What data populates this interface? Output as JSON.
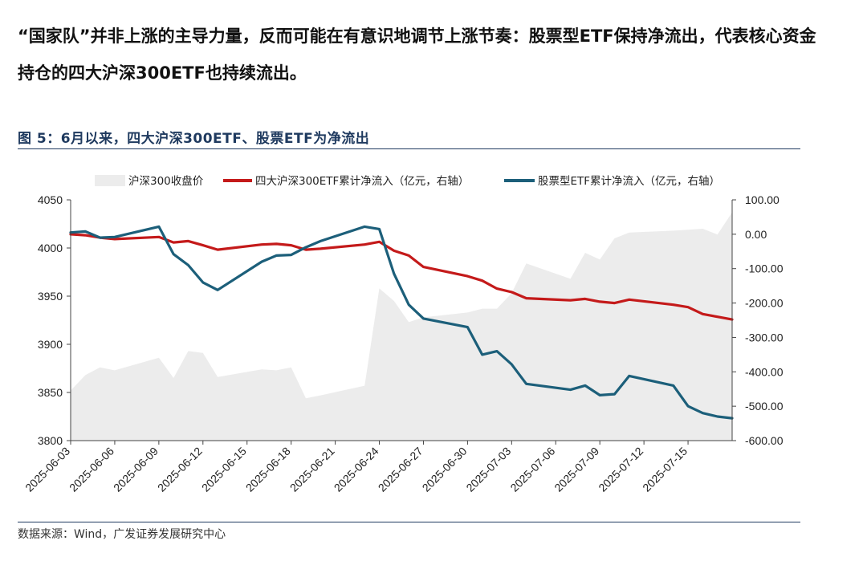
{
  "intro": "“国家队”并非上涨的主导力量，反而可能在有意识地调节上涨节奏：股票型ETF保持净流出，代表核心资金持仓的四大沪深300ETF也持续流出。",
  "figure_title": "图 5：6月以来，四大沪深300ETF、股票ETF为净流出",
  "source": "数据来源：Wind，广发证券发展研究中心",
  "colors": {
    "area": "#ececec",
    "red": "#c41a1a",
    "blue": "#1c5f7a",
    "rule": "#1f3a5f"
  },
  "chart_data": {
    "type": "line",
    "title": "图 5：6月以来，四大沪深300ETF、股票ETF为净流出",
    "legend_position": "top",
    "grid": false,
    "x_ticks": [
      "2025-06-03",
      "2025-06-06",
      "2025-06-09",
      "2025-06-12",
      "2025-06-15",
      "2025-06-18",
      "2025-06-21",
      "2025-06-24",
      "2025-06-27",
      "2025-06-30",
      "2025-07-03",
      "2025-07-06",
      "2025-07-09",
      "2025-07-12",
      "2025-07-15"
    ],
    "x_range": [
      "2025-06-03",
      "2025-07-18"
    ],
    "y_left": {
      "ylim": [
        3800,
        4050
      ],
      "ticks": [
        "3800",
        "3850",
        "3900",
        "3950",
        "4000",
        "4050"
      ]
    },
    "y_right": {
      "ylim": [
        -600,
        100
      ],
      "ticks": [
        "-600.00",
        "-500.00",
        "-400.00",
        "-300.00",
        "-200.00",
        "-100.00",
        "0.00",
        "100.00"
      ]
    },
    "series": [
      {
        "name": "沪深300收盘价",
        "type": "area",
        "axis": "left",
        "x": [
          "2025-06-03",
          "2025-06-04",
          "2025-06-05",
          "2025-06-06",
          "2025-06-09",
          "2025-06-10",
          "2025-06-11",
          "2025-06-12",
          "2025-06-13",
          "2025-06-16",
          "2025-06-17",
          "2025-06-18",
          "2025-06-19",
          "2025-06-20",
          "2025-06-23",
          "2025-06-24",
          "2025-06-25",
          "2025-06-26",
          "2025-06-27",
          "2025-06-30",
          "2025-07-01",
          "2025-07-02",
          "2025-07-03",
          "2025-07-04",
          "2025-07-07",
          "2025-07-08",
          "2025-07-09",
          "2025-07-10",
          "2025-07-11",
          "2025-07-14",
          "2025-07-15",
          "2025-07-16",
          "2025-07-17",
          "2025-07-18"
        ],
        "values": [
          3852,
          3868,
          3876,
          3873,
          3886,
          3865,
          3893,
          3891,
          3866,
          3874,
          3873,
          3876,
          3844,
          3847,
          3857,
          3958,
          3945,
          3923,
          3928,
          3933,
          3937,
          3937,
          3953,
          3984,
          3968,
          3995,
          3988,
          4010,
          4016,
          4018,
          4019,
          4020,
          4014,
          4037
        ]
      },
      {
        "name": "四大沪深300ETF累计净流入（亿元，右轴）",
        "type": "line",
        "axis": "right",
        "x": [
          "2025-06-03",
          "2025-06-04",
          "2025-06-05",
          "2025-06-06",
          "2025-06-09",
          "2025-06-10",
          "2025-06-11",
          "2025-06-12",
          "2025-06-13",
          "2025-06-16",
          "2025-06-17",
          "2025-06-18",
          "2025-06-19",
          "2025-06-20",
          "2025-06-23",
          "2025-06-24",
          "2025-06-25",
          "2025-06-26",
          "2025-06-27",
          "2025-06-30",
          "2025-07-01",
          "2025-07-02",
          "2025-07-03",
          "2025-07-04",
          "2025-07-07",
          "2025-07-08",
          "2025-07-09",
          "2025-07-10",
          "2025-07-11",
          "2025-07-14",
          "2025-07-15",
          "2025-07-16",
          "2025-07-17",
          "2025-07-18"
        ],
        "values": [
          0,
          -3,
          -10,
          -14,
          -8,
          -24,
          -20,
          -32,
          -45,
          -30,
          -28,
          -32,
          -45,
          -42,
          -30,
          -22,
          -48,
          -62,
          -95,
          -122,
          -135,
          -158,
          -168,
          -186,
          -192,
          -188,
          -196,
          -200,
          -190,
          -205,
          -212,
          -232,
          -240,
          -248
        ]
      },
      {
        "name": "股票型ETF累计净流入（亿元，右轴）",
        "type": "line",
        "axis": "right",
        "x": [
          "2025-06-03",
          "2025-06-04",
          "2025-06-05",
          "2025-06-06",
          "2025-06-09",
          "2025-06-10",
          "2025-06-11",
          "2025-06-12",
          "2025-06-13",
          "2025-06-16",
          "2025-06-17",
          "2025-06-18",
          "2025-06-19",
          "2025-06-20",
          "2025-06-23",
          "2025-06-24",
          "2025-06-25",
          "2025-06-26",
          "2025-06-27",
          "2025-06-30",
          "2025-07-01",
          "2025-07-02",
          "2025-07-03",
          "2025-07-04",
          "2025-07-07",
          "2025-07-08",
          "2025-07-09",
          "2025-07-10",
          "2025-07-11",
          "2025-07-14",
          "2025-07-15",
          "2025-07-16",
          "2025-07-17",
          "2025-07-18"
        ],
        "values": [
          5,
          8,
          -10,
          -8,
          22,
          -58,
          -90,
          -140,
          -162,
          -80,
          -62,
          -60,
          -38,
          -20,
          22,
          15,
          -115,
          -205,
          -245,
          -270,
          -350,
          -340,
          -378,
          -435,
          -452,
          -440,
          -468,
          -465,
          -412,
          -440,
          -500,
          -520,
          -530,
          -535
        ]
      }
    ]
  }
}
